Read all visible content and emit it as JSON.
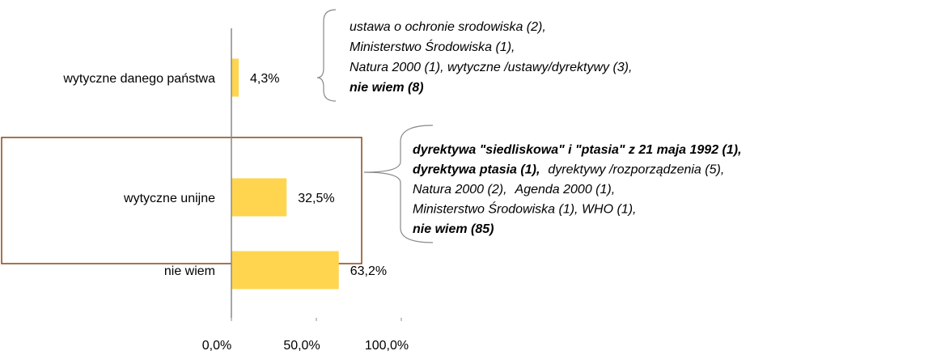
{
  "chart_data": {
    "type": "bar",
    "orientation": "horizontal",
    "categories": [
      "wytyczne danego państwa",
      "wytyczne unijne",
      "nie wiem"
    ],
    "values": [
      4.3,
      32.5,
      63.2
    ],
    "value_labels": [
      "4,3%",
      "32,5%",
      "63,2%"
    ],
    "color": "#ffd54f",
    "xlim": [
      0,
      100
    ],
    "xticks": [
      {
        "value": 0,
        "label": "0,0%"
      },
      {
        "value": 50,
        "label": "50,0%"
      },
      {
        "value": 100,
        "label": "100,0%"
      }
    ],
    "highlight_color": "#8b4513",
    "annotations": [
      {
        "lines": [
          [
            {
              "text": "ustawa o ochronie srodowiska (2),",
              "bold": false
            }
          ],
          [
            {
              "text": "Ministerstwo Środowiska (1),",
              "bold": false
            }
          ],
          [
            {
              "text": "Natura 2000 (1), wytyczne /ustawy/dyrektywy (3),",
              "bold": false
            }
          ],
          [
            {
              "text": "nie wiem (8)",
              "bold": true
            }
          ]
        ]
      },
      {
        "lines": [
          [
            {
              "text": "dyrektywa \"siedliskowa\" i \"ptasia\" z 21 maja 1992 (1),",
              "bold": true
            }
          ],
          [
            {
              "text": "dyrektywa ptasia (1),",
              "bold": true
            },
            {
              "text": "dyrektywy /rozporządzenia (5),",
              "bold": false
            }
          ],
          [
            {
              "text": "Natura 2000 (2),",
              "bold": false
            },
            {
              "text": "Agenda 2000 (1),",
              "bold": false
            }
          ],
          [
            {
              "text": "Ministerstwo Środowiska (1), WHO (1),",
              "bold": false
            }
          ],
          [
            {
              "text": "nie wiem (85)",
              "bold": true
            }
          ]
        ]
      }
    ]
  }
}
